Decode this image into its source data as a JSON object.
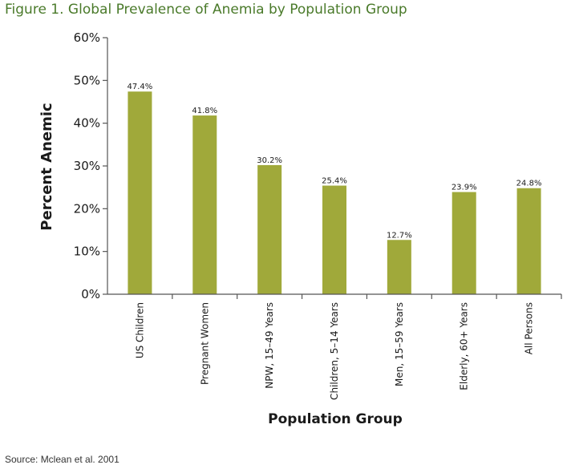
{
  "figure_title": "Figure 1. Global Prevalence of Anemia by Population Group",
  "source": "Source: Mclean et al. 2001",
  "colors": {
    "bar": "#a0a93a",
    "axis": "#555555",
    "title": "#4a7a2a"
  },
  "chart_data": {
    "type": "bar",
    "xlabel": "Population Group",
    "ylabel": "Percent Anemic",
    "ylim": [
      0,
      60
    ],
    "yticks": [
      0,
      10,
      20,
      30,
      40,
      50,
      60
    ],
    "ytick_labels": [
      "0%",
      "10%",
      "20%",
      "30%",
      "40%",
      "50%",
      "60%"
    ],
    "categories": [
      "US Children",
      "Pregnant Women",
      "NPW, 15–49 Years",
      "Children, 5–14 Years",
      "Men, 15–59 Years",
      "Elderly, 60+ Years",
      "All Persons"
    ],
    "values": [
      47.4,
      41.8,
      30.2,
      25.4,
      12.7,
      23.9,
      24.8
    ],
    "value_labels": [
      "47.4%",
      "41.8%",
      "30.2%",
      "25.4%",
      "12.7%",
      "23.9%",
      "24.8%"
    ],
    "grid": false,
    "legend": "none"
  }
}
